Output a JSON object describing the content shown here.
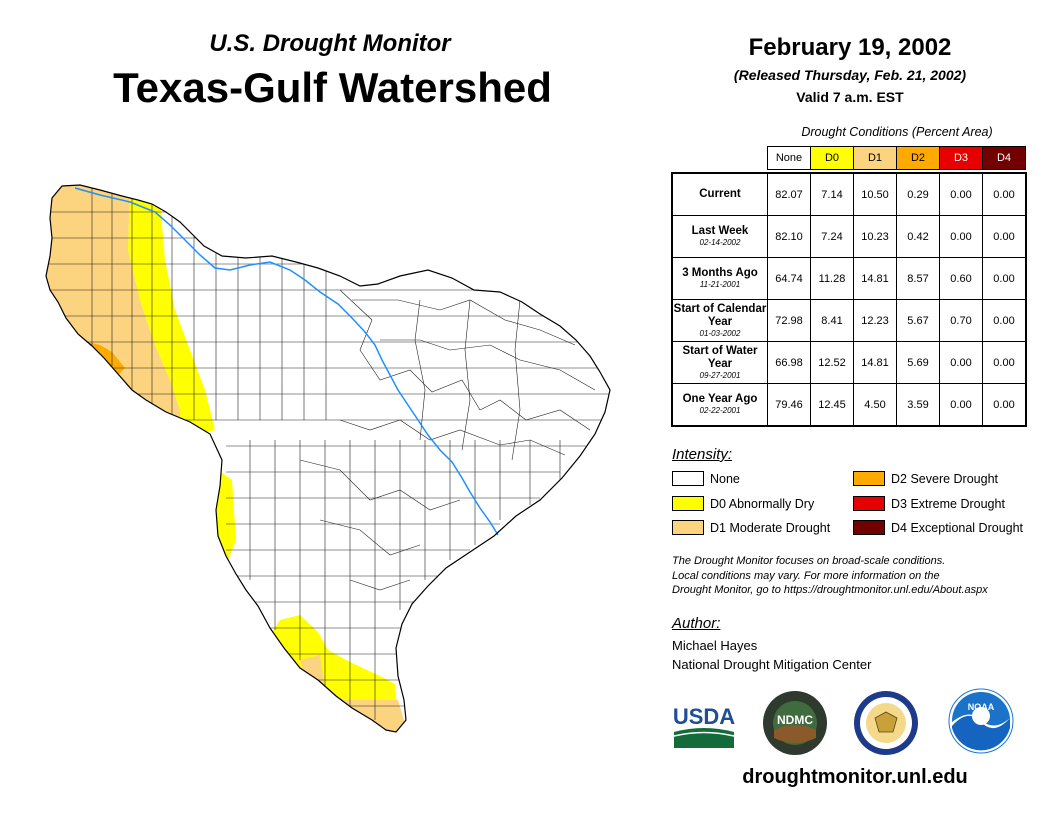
{
  "header": {
    "subtitle": "U.S. Drought Monitor",
    "title": "Texas-Gulf Watershed",
    "date": "February 19, 2002",
    "released": "(Released Thursday, Feb. 21, 2002)",
    "valid": "Valid 7 a.m. EST"
  },
  "table": {
    "caption": "Drought Conditions (Percent Area)",
    "categories": [
      {
        "label": "None",
        "color": "#ffffff",
        "text_color": "#000000"
      },
      {
        "label": "D0",
        "color": "#ffff00",
        "text_color": "#000000"
      },
      {
        "label": "D1",
        "color": "#fcd37f",
        "text_color": "#000000"
      },
      {
        "label": "D2",
        "color": "#ffaa00",
        "text_color": "#000000"
      },
      {
        "label": "D3",
        "color": "#e60000",
        "text_color": "#ffffff"
      },
      {
        "label": "D4",
        "color": "#730000",
        "text_color": "#ffffff"
      }
    ],
    "rows": [
      {
        "label": "Current",
        "date": "",
        "values": [
          "82.07",
          "7.14",
          "10.50",
          "0.29",
          "0.00",
          "0.00"
        ]
      },
      {
        "label": "Last Week",
        "date": "02-14-2002",
        "values": [
          "82.10",
          "7.24",
          "10.23",
          "0.42",
          "0.00",
          "0.00"
        ]
      },
      {
        "label": "3 Months Ago",
        "date": "11-21-2001",
        "values": [
          "64.74",
          "11.28",
          "14.81",
          "8.57",
          "0.60",
          "0.00"
        ]
      },
      {
        "label": "Start of Calendar Year",
        "date": "01-03-2002",
        "values": [
          "72.98",
          "8.41",
          "12.23",
          "5.67",
          "0.70",
          "0.00"
        ]
      },
      {
        "label": "Start of Water Year",
        "date": "09-27-2001",
        "values": [
          "66.98",
          "12.52",
          "14.81",
          "5.69",
          "0.00",
          "0.00"
        ]
      },
      {
        "label": "One Year Ago",
        "date": "02-22-2001",
        "values": [
          "79.46",
          "12.45",
          "4.50",
          "3.59",
          "0.00",
          "0.00"
        ]
      }
    ]
  },
  "legend": {
    "title": "Intensity:",
    "items": [
      {
        "label": "None",
        "color": "#ffffff"
      },
      {
        "label": "D0 Abnormally Dry",
        "color": "#ffff00"
      },
      {
        "label": "D1 Moderate Drought",
        "color": "#fcd37f"
      },
      {
        "label": "D2 Severe Drought",
        "color": "#ffaa00"
      },
      {
        "label": "D3 Extreme Drought",
        "color": "#e60000"
      },
      {
        "label": "D4 Exceptional Drought",
        "color": "#730000"
      }
    ]
  },
  "note": {
    "line1": "The Drought Monitor focuses on broad-scale conditions.",
    "line2": "Local conditions may vary. For more information on the",
    "line3": "Drought Monitor, go to https://droughtmonitor.unl.edu/About.aspx"
  },
  "author": {
    "label": "Author:",
    "name": "Michael Hayes",
    "org": "National Drought Mitigation Center"
  },
  "logos": {
    "usda": "USDA",
    "ndmc": "NDMC",
    "noaa": "NOAA"
  },
  "website": "droughtmonitor.unl.edu"
}
